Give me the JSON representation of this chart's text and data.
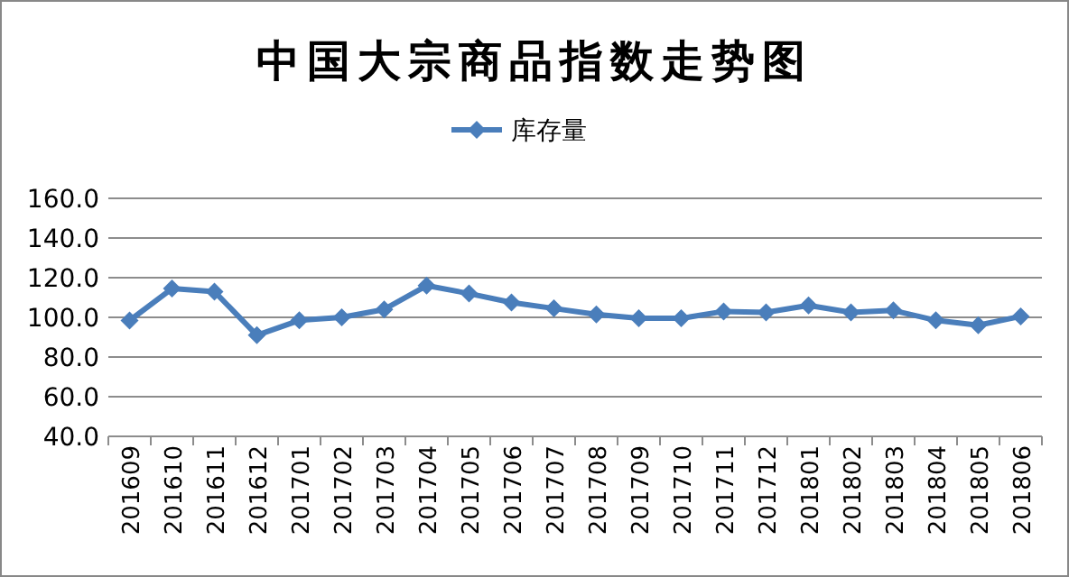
{
  "chart_data": {
    "type": "line",
    "title": "中国大宗商品指数走势图",
    "categories": [
      "201609",
      "201610",
      "201611",
      "201612",
      "201701",
      "201702",
      "201703",
      "201704",
      "201705",
      "201706",
      "201707",
      "201708",
      "201709",
      "201710",
      "201711",
      "201712",
      "201801",
      "201802",
      "201803",
      "201804",
      "201805",
      "201806"
    ],
    "series": [
      {
        "name": "库存量",
        "color": "#4a7ebb",
        "values": [
          98.4,
          114.5,
          113,
          91,
          98.5,
          100,
          104,
          116,
          112,
          107.5,
          104.5,
          101.5,
          99.5,
          99.5,
          103,
          102.5,
          106,
          102.5,
          103.5,
          98.5,
          96,
          100.5
        ]
      }
    ],
    "ylim": [
      40,
      160
    ],
    "yticks": [
      {
        "value": 40,
        "label": "40.0"
      },
      {
        "value": 60,
        "label": "60.0"
      },
      {
        "value": 80,
        "label": "80.0"
      },
      {
        "value": 100,
        "label": "100.0"
      },
      {
        "value": 120,
        "label": "120.0"
      },
      {
        "value": 140,
        "label": "140.0"
      },
      {
        "value": 160,
        "label": "160.0"
      }
    ],
    "grid": "y",
    "legend": "top",
    "marker": "diamond",
    "line_style": "solid"
  }
}
